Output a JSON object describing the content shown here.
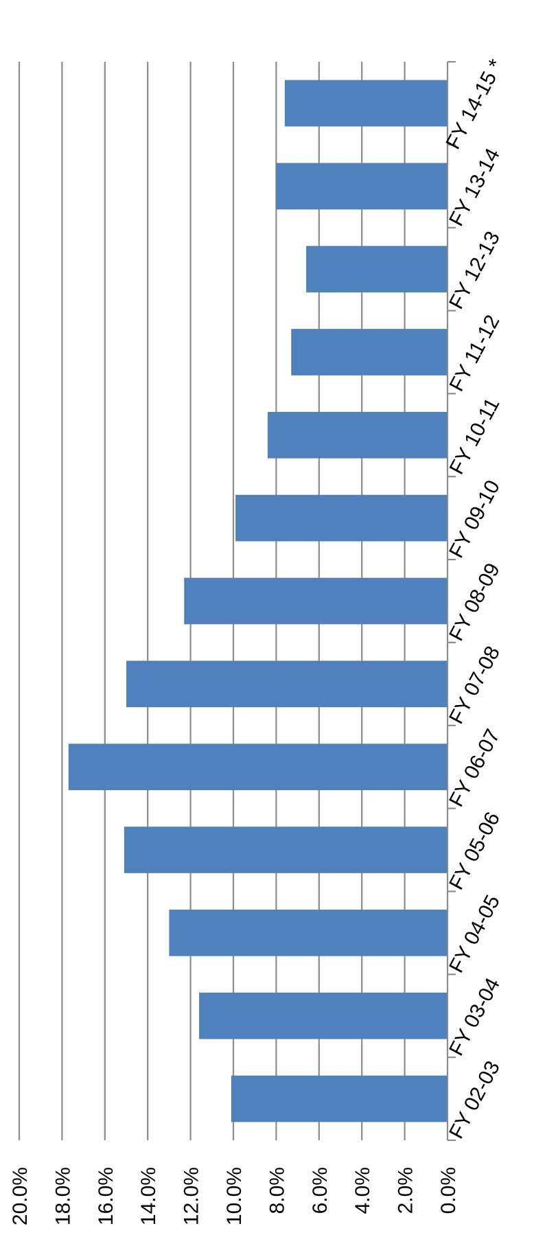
{
  "chart_data": {
    "type": "bar",
    "orientation": "rotated 90 degrees clockwise (values increase leftward, categories run bottom to top)",
    "title": "",
    "xlabel": "",
    "ylabel": "",
    "categories": [
      "FY 02-03",
      "FY 03-04",
      "FY 04-05",
      "FY 05-06",
      "FY 06-07",
      "FY 07-08",
      "FY 08-09",
      "FY 09-10",
      "FY 10-11",
      "FY 11-12",
      "FY 12-13",
      "FY 13-14",
      "FY 14-15 *"
    ],
    "values": [
      10.1,
      11.6,
      13.0,
      15.1,
      17.7,
      15.0,
      12.3,
      9.9,
      8.4,
      7.3,
      6.6,
      8.0,
      7.6
    ],
    "ylim": [
      0,
      20
    ],
    "yticks": [
      "0.0%",
      "2.0%",
      "4.0%",
      "6.0%",
      "8.0%",
      "10.0%",
      "12.0%",
      "14.0%",
      "16.0%",
      "18.0%",
      "20.0%"
    ],
    "grid": true,
    "legend": "none",
    "colors": {
      "bar": "#4f81bd",
      "grid": "#8c8c8c"
    }
  }
}
